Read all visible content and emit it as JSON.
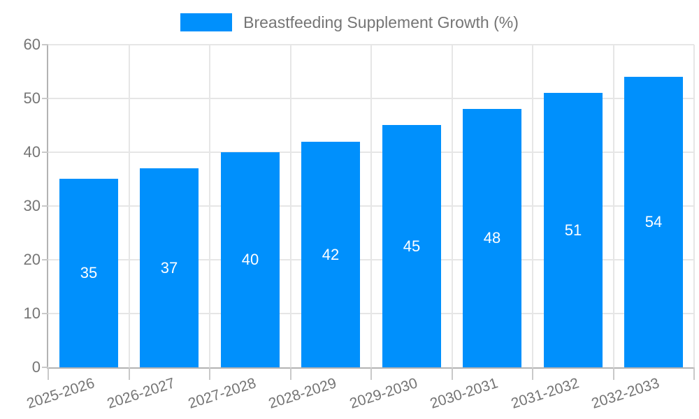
{
  "legend": {
    "label": "Breastfeeding Supplement Growth (%)"
  },
  "colors": {
    "bar": "#0090fc",
    "grid": "#e6e6e6",
    "axis": "#b3b3b3",
    "tick": "#c9c9c9",
    "text": "#757575",
    "bar_label": "#ffffff",
    "background": "#ffffff"
  },
  "chart_data": {
    "type": "bar",
    "title": "Breastfeeding Supplement Growth (%)",
    "categories": [
      "2025-2026",
      "2026-2027",
      "2027-2028",
      "2028-2029",
      "2029-2030",
      "2030-2031",
      "2031-2032",
      "2032-2033"
    ],
    "values": [
      35,
      37,
      40,
      42,
      45,
      48,
      51,
      54
    ],
    "xlabel": "",
    "ylabel": "",
    "ylim": [
      0,
      60
    ],
    "ytick_step": 10,
    "yticks": [
      0,
      10,
      20,
      30,
      40,
      50,
      60
    ],
    "grid": true,
    "legend_position": "top-center",
    "bar_labels_inside": true
  }
}
